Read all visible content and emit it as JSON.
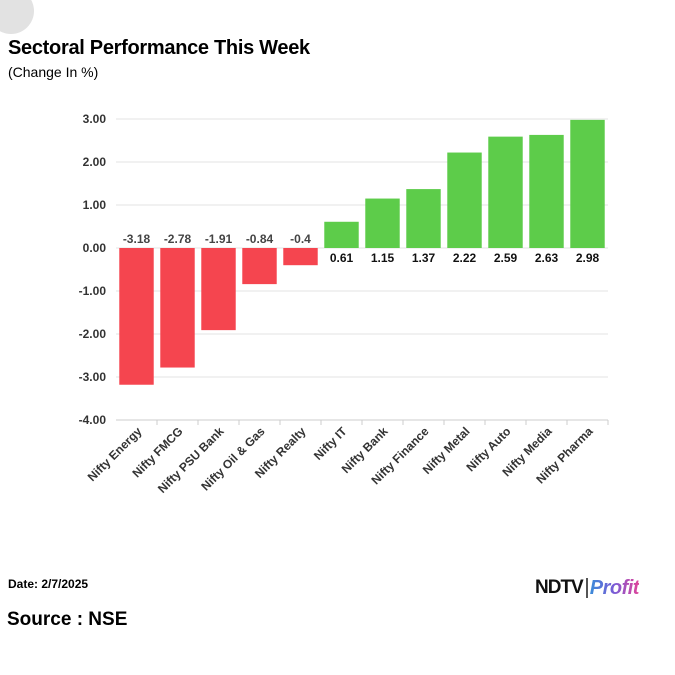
{
  "header": {
    "title": "Sectoral Performance This Week",
    "subtitle": "(Change In %)"
  },
  "footer": {
    "date": "Date: 2/7/2025",
    "source": "Source : NSE",
    "logo_primary": "NDTV",
    "logo_secondary": "Profit"
  },
  "colors": {
    "negative": "#f5454f",
    "positive": "#5dcc4a",
    "grid": "#e3e3e3"
  },
  "chart_data": {
    "type": "bar",
    "categories": [
      "Nifty Energy",
      "Nifty FMCG",
      "Nifty PSU Bank",
      "Nifty Oil & Gas",
      "Nifty Realty",
      "Nifty IT",
      "Nifty Bank",
      "Nifty Finance",
      "Nifty Metal",
      "Nifty Auto",
      "Nifty Media",
      "Nifty Pharma"
    ],
    "values": [
      -3.18,
      -2.78,
      -1.91,
      -0.84,
      -0.4,
      0.61,
      1.15,
      1.37,
      2.22,
      2.59,
      2.63,
      2.98
    ],
    "data_labels": [
      "-3.18",
      "-2.78",
      "-1.91",
      "-0.84",
      "-0.4",
      "0.61",
      "1.15",
      "1.37",
      "2.22",
      "2.59",
      "2.63",
      "2.98"
    ],
    "yticks": [
      "3.00",
      "2.00",
      "1.00",
      "0.00",
      "-1.00",
      "-2.00",
      "-3.00",
      "-4.00"
    ],
    "ylim": [
      -4,
      3
    ],
    "title": "Sectoral Performance This Week",
    "ylabel": "",
    "xlabel": "",
    "grid": true,
    "legend": "none"
  }
}
